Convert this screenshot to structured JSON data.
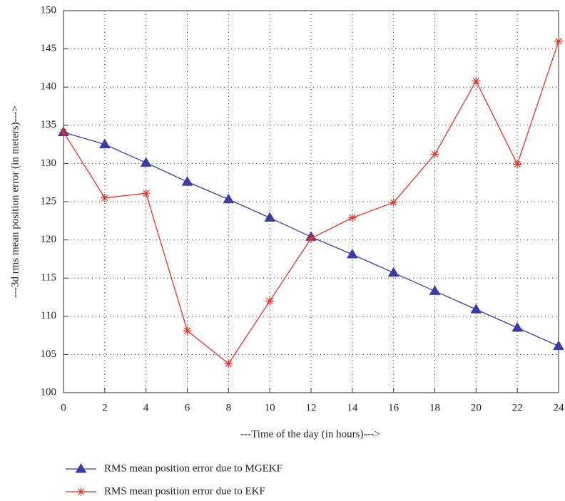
{
  "chart_data": {
    "type": "line",
    "x_label": "---Time of the day (in hours)--->",
    "y_label": "---3d rms mean position error (in meters)--->",
    "x": [
      0,
      2,
      4,
      6,
      8,
      10,
      12,
      14,
      16,
      18,
      20,
      22,
      24
    ],
    "series": [
      {
        "name": "RMS mean position error due to MGEKF",
        "color": "#3b3ba6",
        "marker": "triangle",
        "values": [
          134.1,
          132.5,
          130.1,
          127.6,
          125.3,
          122.9,
          120.4,
          118.1,
          115.7,
          113.3,
          110.9,
          108.5,
          106.1
        ]
      },
      {
        "name": "RMS mean position error due to EKF",
        "color": "#e3342b",
        "marker": "asterisk",
        "values": [
          134.1,
          125.5,
          126.1,
          108.1,
          103.8,
          112.0,
          120.2,
          122.9,
          124.9,
          131.2,
          140.8,
          129.9,
          146.0
        ]
      }
    ],
    "xlim": [
      0,
      24
    ],
    "xticks": [
      0,
      2,
      4,
      6,
      8,
      10,
      12,
      14,
      16,
      18,
      20,
      22,
      24
    ],
    "ylim": [
      100,
      150
    ],
    "yticks": [
      100,
      105,
      110,
      115,
      120,
      125,
      130,
      135,
      140,
      145,
      150
    ],
    "grid": true
  }
}
